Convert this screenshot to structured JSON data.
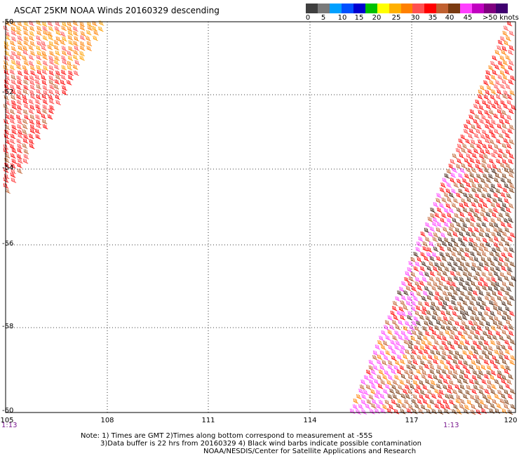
{
  "title": "ASCAT 25KM NOAA Winds 20160329 descending",
  "colorbar": {
    "colors": [
      "#3f3f3f",
      "#7a7a7a",
      "#00a0ff",
      "#0050ff",
      "#0000d0",
      "#00c000",
      "#ffff00",
      "#ffb000",
      "#ff8000",
      "#ff5050",
      "#ff0000",
      "#c06030",
      "#7a3a10",
      "#ff40ff",
      "#c000c0",
      "#800080",
      "#400070"
    ],
    "labels": [
      "0",
      "5",
      "10",
      "15",
      "20",
      "25",
      "30",
      "35",
      "40",
      "45"
    ],
    "unit_label": ">50 knots"
  },
  "map": {
    "lat_range": [
      -60,
      -50
    ],
    "lon_range": [
      105,
      120
    ],
    "lat_ticks": [
      "-50",
      "-52",
      "-54",
      "-56",
      "-58",
      "-60"
    ],
    "lon_ticks": [
      "105",
      "108",
      "111",
      "114",
      "117",
      "120"
    ],
    "times": [
      "1:13",
      "1:13"
    ]
  },
  "notes": {
    "line1": "Note: 1) Times are GMT 2)Times along bottom correspond to measurement at -55S",
    "line2": "3)Data buffer is 22 hrs from 20160329 4) Black wind barbs indicate possible contamination",
    "line3": "NOAA/NESDIS/Center for Satellite Applications and Research"
  }
}
